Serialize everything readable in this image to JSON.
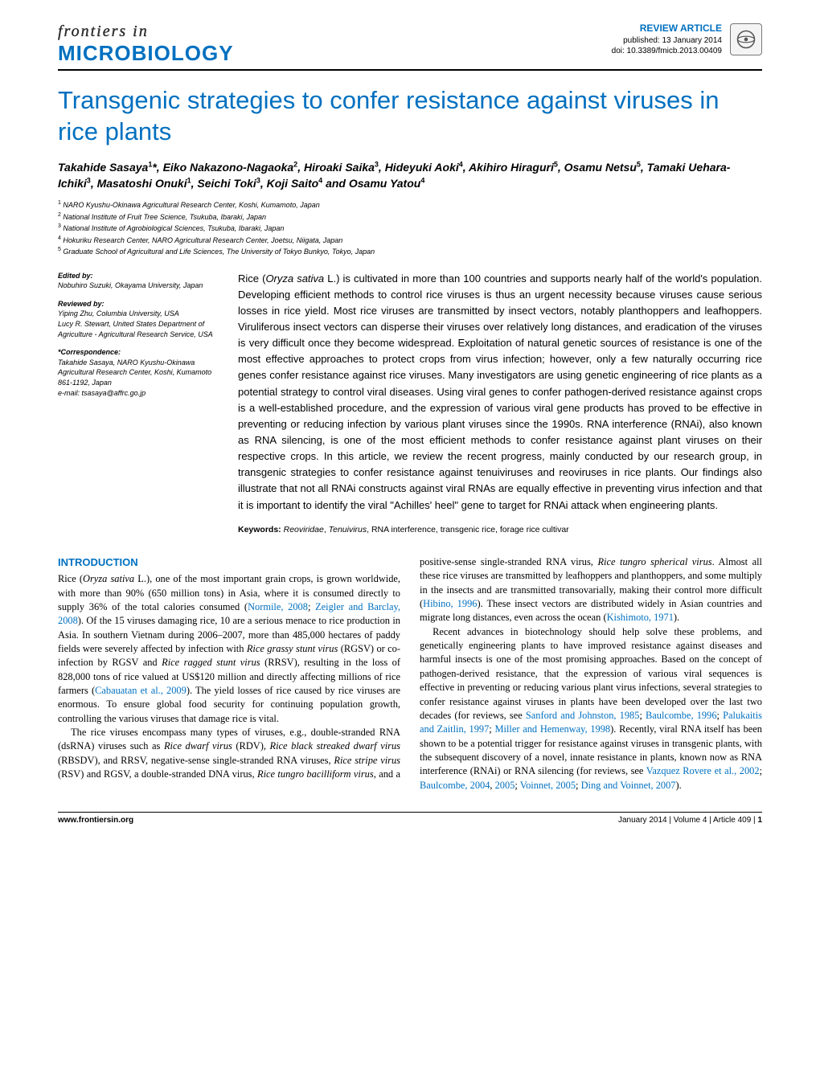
{
  "header": {
    "journal_top": "frontiers in",
    "journal_name": "MICROBIOLOGY",
    "article_type": "REVIEW ARTICLE",
    "published": "published: 13 January 2014",
    "doi": "doi: 10.3389/fmicb.2013.00409"
  },
  "title": "Transgenic strategies to confer resistance against viruses in rice plants",
  "authors_html": "Takahide Sasaya<sup>1</sup>*, Eiko Nakazono-Nagaoka<sup>2</sup>, Hiroaki Saika<sup>3</sup>, Hideyuki Aoki<sup>4</sup>, Akihiro Hiraguri<sup>5</sup>, Osamu Netsu<sup>5</sup>, Tamaki Uehara-Ichiki<sup>3</sup>, Masatoshi Onuki<sup>1</sup>, Seichi Toki<sup>3</sup>, Koji Saito<sup>4</sup> and Osamu Yatou<sup>4</sup>",
  "affiliations": [
    "<sup>1</sup> NARO Kyushu-Okinawa Agricultural Research Center, Koshi, Kumamoto, Japan",
    "<sup>2</sup> National Institute of Fruit Tree Science, Tsukuba, Ibaraki, Japan",
    "<sup>3</sup> National Institute of Agrobiological Sciences, Tsukuba, Ibaraki, Japan",
    "<sup>4</sup> Hokuriku Research Center, NARO Agricultural Research Center, Joetsu, Niigata, Japan",
    "<sup>5</sup> Graduate School of Agricultural and Life Sciences, The University of Tokyo Bunkyo, Tokyo, Japan"
  ],
  "sidebar": {
    "edited_by_label": "Edited by:",
    "edited_by": "Nobuhiro Suzuki, Okayama University, Japan",
    "reviewed_by_label": "Reviewed by:",
    "reviewed_by": "Yiping Zhu, Columbia University, USA\nLucy R. Stewart, United States Department of Agriculture - Agricultural Research Service, USA",
    "correspondence_label": "*Correspondence:",
    "correspondence": "Takahide Sasaya, NARO Kyushu-Okinawa Agricultural Research Center, Koshi, Kumamoto 861-1192, Japan\ne-mail: tsasaya@affrc.go.jp"
  },
  "abstract": "Rice (<em>Oryza sativa</em> L.) is cultivated in more than 100 countries and supports nearly half of the world's population. Developing efficient methods to control rice viruses is thus an urgent necessity because viruses cause serious losses in rice yield. Most rice viruses are transmitted by insect vectors, notably planthoppers and leafhoppers. Viruliferous insect vectors can disperse their viruses over relatively long distances, and eradication of the viruses is very difficult once they become widespread. Exploitation of natural genetic sources of resistance is one of the most effective approaches to protect crops from virus infection; however, only a few naturally occurring rice genes confer resistance against rice viruses. Many investigators are using genetic engineering of rice plants as a potential strategy to control viral diseases. Using viral genes to confer pathogen-derived resistance against crops is a well-established procedure, and the expression of various viral gene products has proved to be effective in preventing or reducing infection by various plant viruses since the 1990s. RNA interference (RNAi), also known as RNA silencing, is one of the most efficient methods to confer resistance against plant viruses on their respective crops. In this article, we review the recent progress, mainly conducted by our research group, in transgenic strategies to confer resistance against tenuiviruses and reoviruses in rice plants. Our findings also illustrate that not all RNAi constructs against viral RNAs are equally effective in preventing virus infection and that it is important to identify the viral \"Achilles' heel\" gene to target for RNAi attack when engineering plants.",
  "keywords_label": "Keywords:",
  "keywords": "<em>Reoviridae</em>, <em>Tenuivirus</em>, RNA interference, transgenic rice, forage rice cultivar",
  "section_heading": "INTRODUCTION",
  "body_paragraphs": [
    "Rice (<em>Oryza sativa</em> L.), one of the most important grain crops, is grown worldwide, with more than 90% (650 million tons) in Asia, where it is consumed directly to supply 36% of the total calories consumed (<span class=\"cite\">Normile, 2008</span>; <span class=\"cite\">Zeigler and Barclay, 2008</span>). Of the 15 viruses damaging rice, 10 are a serious menace to rice production in Asia. In southern Vietnam during 2006–2007, more than 485,000 hectares of paddy fields were severely affected by infection with <em>Rice grassy stunt virus</em> (RGSV) or co-infection by RGSV and <em>Rice ragged stunt virus</em> (RRSV), resulting in the loss of 828,000 tons of rice valued at US$120 million and directly affecting millions of rice farmers (<span class=\"cite\">Cabauatan et al., 2009</span>). The yield losses of rice caused by rice viruses are enormous. To ensure global food security for continuing population growth, controlling the various viruses that damage rice is vital.",
    "The rice viruses encompass many types of viruses, e.g., double-stranded RNA (dsRNA) viruses such as <em>Rice dwarf virus</em> (RDV), <em>Rice black streaked dwarf virus</em> (RBSDV), and RRSV, negative-sense single-stranded RNA viruses, <em>Rice stripe virus</em> (RSV) and RGSV, a double-stranded DNA virus, <em>Rice tungro bacilliform virus</em>, and a positive-sense single-stranded RNA virus, <em>Rice tungro spherical virus</em>. Almost all these rice viruses are transmitted by leafhoppers and planthoppers, and some multiply in the insects and are transmitted transovarially, making their control more difficult (<span class=\"cite\">Hibino, 1996</span>). These insect vectors are distributed widely in Asian countries and migrate long distances, even across the ocean (<span class=\"cite\">Kishimoto, 1971</span>).",
    "Recent advances in biotechnology should help solve these problems, and genetically engineering plants to have improved resistance against diseases and harmful insects is one of the most promising approaches. Based on the concept of pathogen-derived resistance, that the expression of various viral sequences is effective in preventing or reducing various plant virus infections, several strategies to confer resistance against viruses in plants have been developed over the last two decades (for reviews, see <span class=\"cite\">Sanford and Johnston, 1985</span>; <span class=\"cite\">Baulcombe, 1996</span>; <span class=\"cite\">Palukaitis and Zaitlin, 1997</span>; <span class=\"cite\">Miller and Hemenway, 1998</span>). Recently, viral RNA itself has been shown to be a potential trigger for resistance against viruses in transgenic plants, with the subsequent discovery of a novel, innate resistance in plants, known now as RNA interference (RNAi) or RNA silencing (for reviews, see <span class=\"cite\">Vazquez Rovere et al., 2002</span>; <span class=\"cite\">Baulcombe, 2004</span>, <span class=\"cite\">2005</span>; <span class=\"cite\">Voinnet, 2005</span>; <span class=\"cite\">Ding and Voinnet, 2007</span>)."
  ],
  "footer": {
    "left": "www.frontiersin.org",
    "right": "January 2014 | Volume 4 | Article 409 | <b>1</b>"
  },
  "colors": {
    "accent": "#0070c0",
    "text": "#000000",
    "background": "#ffffff"
  },
  "typography": {
    "title_fontsize": 31,
    "authors_fontsize": 14,
    "affiliations_fontsize": 9,
    "sidebar_fontsize": 9,
    "abstract_fontsize": 13,
    "body_fontsize": 12.4,
    "footer_fontsize": 10
  }
}
